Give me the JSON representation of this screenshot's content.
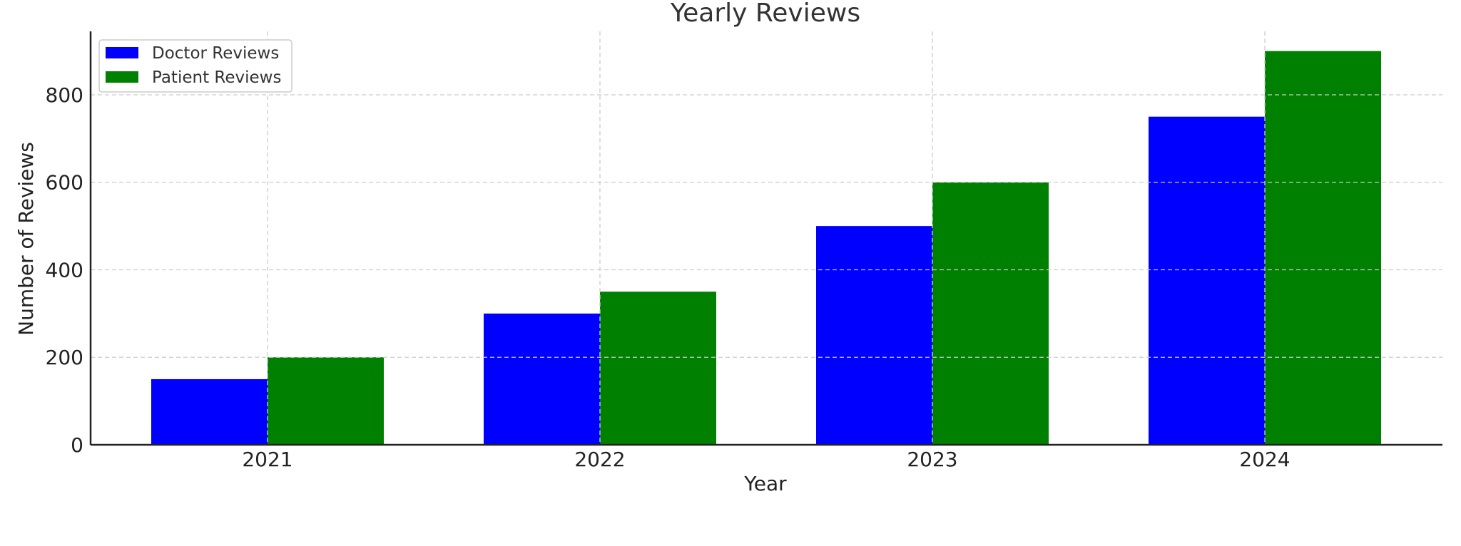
{
  "chart_data": {
    "type": "bar",
    "title": "Yearly Reviews",
    "xlabel": "Year",
    "ylabel": "Number of Reviews",
    "categories": [
      "2021",
      "2022",
      "2023",
      "2024"
    ],
    "series": [
      {
        "name": "Doctor Reviews",
        "color": "#0000ff",
        "values": [
          150,
          300,
          500,
          750
        ]
      },
      {
        "name": "Patient Reviews",
        "color": "#008000",
        "values": [
          200,
          350,
          600,
          900
        ]
      }
    ],
    "ylim": [
      0,
      945
    ],
    "yticks": [
      0,
      200,
      400,
      600,
      800
    ],
    "grid": true,
    "legend_position": "top-left"
  }
}
